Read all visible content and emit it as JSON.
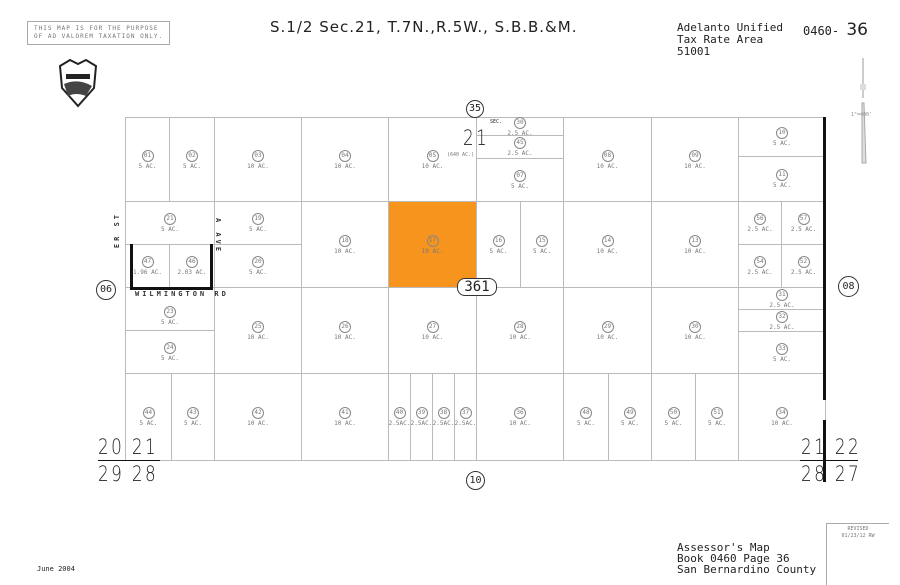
{
  "header": {
    "title": "S.1/2 Sec.21, T.7N.,R.5W., S.B.B.&M.",
    "disclaimer": [
      "THIS MAP IS FOR THE PURPOSE",
      "OF AD VALOREM TAXATION ONLY."
    ],
    "tax_area": [
      "Adelanto Unified",
      "Tax Rate Area",
      "51001"
    ],
    "book_prefix": "0460-",
    "page_no": "36",
    "seal_icon": "county-seal-icon"
  },
  "section": {
    "top_circle": "35",
    "sec_label": "SEC.",
    "sec_number": "21",
    "sec_area": "(640 AC.)",
    "left": "06",
    "right": "08",
    "bottom": "10",
    "route": "361"
  },
  "corners": {
    "left_top": "20 21",
    "left_bottom": "29 28",
    "right_top": "21 22",
    "right_bottom": "28 27"
  },
  "streets": {
    "road": "WILMINGTON RD",
    "west_st": "ER ST",
    "east_ave": "A AVE"
  },
  "scale": "1\"=400'",
  "highlight_color": "#f7941d",
  "parcels": [
    {
      "id": "01",
      "ac": "5 AC."
    },
    {
      "id": "02",
      "ac": "5 AC."
    },
    {
      "id": "03",
      "ac": "10 AC."
    },
    {
      "id": "04",
      "ac": "10 AC."
    },
    {
      "id": "05",
      "ac": "10 AC."
    },
    {
      "id": "30",
      "ac": "2.5 AC."
    },
    {
      "id": "45",
      "ac": "2.5 AC."
    },
    {
      "id": "07",
      "ac": "5 AC."
    },
    {
      "id": "08",
      "ac": "10 AC."
    },
    {
      "id": "09",
      "ac": "10 AC."
    },
    {
      "id": "10",
      "ac": "5 AC."
    },
    {
      "id": "11",
      "ac": "5 AC."
    },
    {
      "id": "21",
      "ac": "5 AC."
    },
    {
      "id": "47",
      "ac": "1.96 AC."
    },
    {
      "id": "46",
      "ac": "2.03 AC."
    },
    {
      "id": "19",
      "ac": "5 AC."
    },
    {
      "id": "20",
      "ac": "5 AC."
    },
    {
      "id": "18",
      "ac": "10 AC."
    },
    {
      "id": "17",
      "ac": "10 AC.",
      "highlighted": true
    },
    {
      "id": "16",
      "ac": "5 AC."
    },
    {
      "id": "15",
      "ac": "5 AC."
    },
    {
      "id": "14",
      "ac": "10 AC."
    },
    {
      "id": "13",
      "ac": "10 AC."
    },
    {
      "id": "56",
      "ac": "2.5 AC."
    },
    {
      "id": "57",
      "ac": "2.5 AC."
    },
    {
      "id": "54",
      "ac": "2.5 AC."
    },
    {
      "id": "52",
      "ac": "2.5 AC."
    },
    {
      "id": "23",
      "ac": "5 AC."
    },
    {
      "id": "24",
      "ac": "5 AC."
    },
    {
      "id": "25",
      "ac": "10 AC."
    },
    {
      "id": "26",
      "ac": "10 AC."
    },
    {
      "id": "27",
      "ac": "10 AC."
    },
    {
      "id": "28",
      "ac": "10 AC."
    },
    {
      "id": "29",
      "ac": "10 AC."
    },
    {
      "id": "30",
      "ac": "10 AC."
    },
    {
      "id": "31",
      "ac": "2.5 AC."
    },
    {
      "id": "32",
      "ac": "2.5 AC."
    },
    {
      "id": "33",
      "ac": "5 AC."
    },
    {
      "id": "44",
      "ac": "5 AC."
    },
    {
      "id": "43",
      "ac": "5 AC."
    },
    {
      "id": "42",
      "ac": "10 AC."
    },
    {
      "id": "41",
      "ac": "10 AC."
    },
    {
      "id": "40",
      "ac": "2.5AC."
    },
    {
      "id": "39",
      "ac": "2.5AC."
    },
    {
      "id": "38",
      "ac": "2.5AC."
    },
    {
      "id": "37",
      "ac": "2.5AC."
    },
    {
      "id": "36",
      "ac": "10 AC."
    },
    {
      "id": "48",
      "ac": "5 AC."
    },
    {
      "id": "49",
      "ac": "5 AC."
    },
    {
      "id": "50",
      "ac": "5 AC."
    },
    {
      "id": "51",
      "ac": "5 AC."
    },
    {
      "id": "34",
      "ac": "10 AC."
    }
  ],
  "footer": {
    "lines": [
      "Assessor's Map",
      "Book 0460 Page 36",
      "San Bernardino County"
    ],
    "date": "June 2004",
    "revised_label": "REVISED",
    "revised_value": "01/23/12 RW"
  }
}
